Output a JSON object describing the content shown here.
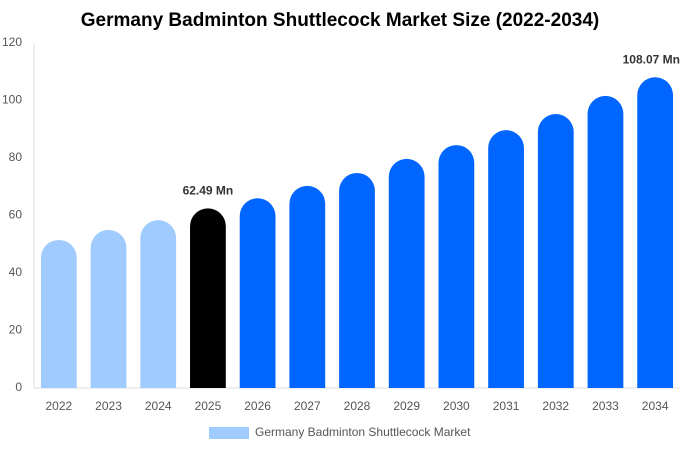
{
  "chart_data": {
    "type": "bar",
    "title": "Germany Badminton Shuttlecock Market Size (2022-2034)",
    "categories": [
      "2022",
      "2023",
      "2024",
      "2025",
      "2026",
      "2027",
      "2028",
      "2029",
      "2030",
      "2031",
      "2032",
      "2033",
      "2034"
    ],
    "series": [
      {
        "name": "Germany Badminton Shuttlecock Market",
        "color": "#a0cbff",
        "values": [
          51.5,
          55,
          58.4,
          62.49,
          66,
          70.3,
          74.8,
          79.7,
          84.5,
          89.7,
          95.3,
          101.6,
          108.07
        ],
        "colors": [
          "#a0cbff",
          "#a0cbff",
          "#a0cbff",
          "#000000",
          "#0066ff",
          "#0066ff",
          "#0066ff",
          "#0066ff",
          "#0066ff",
          "#0066ff",
          "#0066ff",
          "#0066ff",
          "#0066ff"
        ],
        "value_labels": [
          null,
          null,
          null,
          "62.49 Mn",
          null,
          null,
          null,
          null,
          null,
          null,
          null,
          null,
          "108.07 Mn"
        ]
      }
    ],
    "ylim": [
      0,
      120
    ],
    "yticks": [
      0,
      20,
      40,
      60,
      80,
      100,
      120
    ],
    "grid": false,
    "legend": "bottom"
  }
}
